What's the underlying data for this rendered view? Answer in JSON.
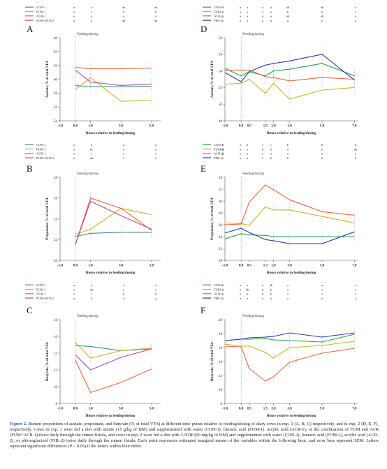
{
  "caption": {
    "label": "Figure 2.",
    "text": "Rumen proportions of acetate, propionate, and butyrate (% of total VFA) at different time points relative to feeding/dosing of dairy cows in exp. 1 (A, B, C) respectively, and in exp. 2 (D, E, F), respectively. Cows in exp. 1 were fed a diet with nitrate (15 g/kg of DM) and supplemented with water (CON-1), fumaric acid (FUM-1), acrylic acid (ACR-1), or the combination of FUM and ACR (FUM+ACR-1) twice daily through the rumen fistula, and cows in exp. 2 were fed a diet with 3-NOP (60 mg/kg of DM) and supplemented with water (CON-2), fumaric acid (FUM-2), acrylic acid (ACR-2), or phloroglucinol (PHL-2) twice daily through the rumen fistula. Each point represents estimated marginal means of the variables within the following hour, and error bars represent SEM. Letters represent significant differences (P < 0.05) if the letters within hour differ."
  },
  "colors": {
    "CON": "#1fa34a",
    "FUM": "#c9b12c",
    "ACR": "#e2683f",
    "FUMACR": "#b24aa3",
    "PHL": "#2a3aa8",
    "CON1": "#3d8f84"
  },
  "chart_data": [
    {
      "panel": "A",
      "type": "line",
      "annotation": "Feeding/dosing",
      "xlabel": "Hours relative to feeding/dosing",
      "ylabel": "Acetate, % of total VFA",
      "x": [
        0,
        1,
        3,
        5
      ],
      "xticks": [
        -1,
        0,
        1,
        3,
        5
      ],
      "xtick_labels": [
        "-1.0",
        "0.0",
        "1.0",
        "3.0",
        "5.0"
      ],
      "xlim": [
        -1,
        5.6
      ],
      "ylim": [
        54,
        66
      ],
      "yticks": [
        54,
        56,
        58,
        60,
        62,
        64,
        66
      ],
      "series": [
        {
          "name": "CON-1",
          "color": "CON1",
          "values": [
            59.1,
            58.9,
            58.9,
            59.0
          ],
          "err": [
            0.9,
            0.9,
            0.9,
            0.9
          ],
          "letters": [
            "a",
            "a",
            "ab",
            "ab"
          ]
        },
        {
          "name": "FUM-1",
          "color": "FUM",
          "values": [
            58.5,
            60.2,
            56.8,
            57.0
          ],
          "err": [
            0.9,
            0.9,
            0.9,
            0.9
          ],
          "letters": [
            "a",
            "a",
            "b",
            "b"
          ]
        },
        {
          "name": "ACR-1",
          "color": "ACR",
          "values": [
            61.7,
            61.5,
            61.5,
            61.6
          ],
          "err": [
            0.9,
            0.9,
            0.9,
            0.9
          ],
          "letters": [
            "a",
            "a",
            "a",
            "a"
          ]
        },
        {
          "name": "FUM+ACR-1",
          "color": "FUMACR",
          "values": [
            61.3,
            59.6,
            59.1,
            59.3
          ],
          "err": [
            0.9,
            0.9,
            0.9,
            0.9
          ],
          "letters": [
            "a",
            "a",
            "ab",
            "ab"
          ]
        }
      ]
    },
    {
      "panel": "B",
      "type": "line",
      "annotation": "Feeding/dosing",
      "xlabel": "Hours relative to feeding/dosing",
      "ylabel": "Propionate, % of total VFA",
      "x": [
        0,
        1,
        3,
        5
      ],
      "xticks": [
        -1,
        0,
        1,
        3,
        5
      ],
      "xtick_labels": [
        "-1.0",
        "0.0",
        "1.0",
        "3.0",
        "5.0"
      ],
      "xlim": [
        -1,
        5.6
      ],
      "ylim": [
        20,
        28
      ],
      "yticks": [
        20,
        22,
        24,
        26,
        28
      ],
      "series": [
        {
          "name": "CON-1",
          "color": "CON1",
          "values": [
            22.3,
            22.6,
            22.7,
            22.7
          ],
          "err": [
            0.6,
            0.6,
            0.6,
            0.6
          ],
          "letters": [
            "a",
            "a",
            "a",
            "a"
          ]
        },
        {
          "name": "FUM-1",
          "color": "FUM",
          "values": [
            22.5,
            23.0,
            25.0,
            24.4
          ],
          "err": [
            0.6,
            0.6,
            0.6,
            0.6
          ],
          "letters": [
            "a",
            "bc",
            "a",
            "a"
          ]
        },
        {
          "name": "ACR-1",
          "color": "ACR",
          "values": [
            21.5,
            26.0,
            25.0,
            22.9
          ],
          "err": [
            0.6,
            0.6,
            0.6,
            0.6
          ],
          "letters": [
            "a",
            "c",
            "a",
            "a"
          ]
        },
        {
          "name": "FUM+ACR-1",
          "color": "FUMACR",
          "values": [
            21.5,
            25.7,
            24.3,
            23.0
          ],
          "err": [
            0.6,
            0.6,
            0.6,
            0.6
          ],
          "letters": [
            "a",
            "ab",
            "a",
            "a"
          ]
        }
      ]
    },
    {
      "panel": "C",
      "type": "line",
      "annotation": "Feeding/dosing",
      "xlabel": "Hours relative to feeding/dosing",
      "ylabel": "Butyrate, % of total VFA",
      "x": [
        0,
        1,
        3,
        5
      ],
      "xticks": [
        -1,
        0,
        1,
        3,
        5
      ],
      "xtick_labels": [
        "-1.0",
        "0.0",
        "1.0",
        "3.0",
        "5.0"
      ],
      "xlim": [
        -1,
        5.6
      ],
      "ylim": [
        8,
        18
      ],
      "yticks": [
        8,
        10,
        12,
        14,
        16,
        18
      ],
      "series": [
        {
          "name": "CON-1",
          "color": "CON1",
          "values": [
            14.9,
            14.8,
            14.3,
            14.5
          ],
          "err": [
            0.6,
            0.6,
            0.6,
            0.6
          ],
          "letters": [
            "a",
            "a",
            "a",
            "a"
          ]
        },
        {
          "name": "FUM-1",
          "color": "FUM",
          "values": [
            15.3,
            13.4,
            14.3,
            14.6
          ],
          "err": [
            0.6,
            0.6,
            0.6,
            0.6
          ],
          "letters": [
            "a",
            "ab",
            "a",
            "a"
          ]
        },
        {
          "name": "ACR-1",
          "color": "ACR",
          "values": [
            13.2,
            9.3,
            10.5,
            12.1
          ],
          "err": [
            0.6,
            0.6,
            0.6,
            0.6
          ],
          "letters": [
            "a",
            "c",
            "b",
            "b"
          ]
        },
        {
          "name": "FUM+ACR-1",
          "color": "FUMACR",
          "values": [
            13.8,
            12.0,
            13.5,
            14.5
          ],
          "err": [
            0.6,
            0.6,
            0.6,
            0.6
          ],
          "letters": [
            "a",
            "b",
            "a",
            "a"
          ]
        }
      ]
    },
    {
      "panel": "D",
      "type": "line",
      "annotation": "Feeding/dosing",
      "xlabel": "Hours relative to feeding/dosing",
      "ylabel": "Acetate, % of total VFA",
      "x": [
        -1,
        0,
        0.5,
        1.5,
        2,
        3,
        5,
        7
      ],
      "xticks": [
        -1,
        0,
        0.5,
        1.5,
        2,
        3,
        5,
        7
      ],
      "xtick_labels": [
        "-1.0",
        "0.0",
        "0.5",
        "1.5",
        "2.0",
        "3.0",
        "5.0",
        "7.0"
      ],
      "xlim": [
        -1,
        7.2
      ],
      "ylim": [
        48,
        58
      ],
      "yticks": [
        48,
        50,
        52,
        54,
        56,
        58
      ],
      "series": [
        {
          "name": "CON-2",
          "color": "CON",
          "values": [
            54.3,
            53.4,
            53.9,
            53.4,
            54.0,
            54.2,
            54.9,
            53.4
          ],
          "err": [
            1.0,
            1.0,
            1.0,
            1.0,
            1.0,
            1.0,
            1.0,
            1.0
          ],
          "letters": [
            "a",
            "a",
            "a",
            "a",
            "a",
            "ab",
            "ab",
            "a"
          ]
        },
        {
          "name": "FUM-2",
          "color": "FUM",
          "values": [
            52.4,
            52.5,
            53.0,
            51.3,
            52.5,
            50.6,
            51.7,
            52.0
          ],
          "err": [
            1.0,
            1.0,
            1.0,
            1.0,
            1.0,
            1.0,
            1.0,
            1.0
          ],
          "letters": [
            "a",
            "a",
            "a",
            "a",
            "a",
            "b",
            "b",
            "a"
          ]
        },
        {
          "name": "ACR-2",
          "color": "ACR",
          "values": [
            54.1,
            54.1,
            54.1,
            53.3,
            53.2,
            52.8,
            53.2,
            53.0
          ],
          "err": [
            1.0,
            1.0,
            1.0,
            1.0,
            1.0,
            1.0,
            1.0,
            1.0
          ],
          "letters": [
            "a",
            "a",
            "a",
            "a",
            "a",
            "ab",
            "ab",
            "a"
          ]
        },
        {
          "name": "PHL-2",
          "color": "PHL",
          "values": [
            53.8,
            52.7,
            53.9,
            54.7,
            54.9,
            55.2,
            56.0,
            52.9
          ],
          "err": [
            1.0,
            1.0,
            1.0,
            1.0,
            1.0,
            1.0,
            1.0,
            1.0
          ],
          "letters": [
            "a",
            "a",
            "a",
            "a",
            "a",
            "a",
            "a",
            "a"
          ]
        }
      ]
    },
    {
      "panel": "E",
      "type": "line",
      "annotation": "Feeding/dosing",
      "xlabel": "Hours relative to feeding/dosing",
      "ylabel": "Propionate, % of total VFA",
      "x": [
        -1,
        0,
        0.5,
        1.5,
        2,
        3,
        5,
        7
      ],
      "xticks": [
        -1,
        0,
        0.5,
        1.5,
        2,
        3,
        5,
        7
      ],
      "xtick_labels": [
        "-1.0",
        "0.0",
        "0.5",
        "1.5",
        "2.0",
        "3.0",
        "5.0",
        "7.0"
      ],
      "xlim": [
        -1,
        7.2
      ],
      "ylim": [
        20,
        34
      ],
      "yticks": [
        20,
        22,
        24,
        26,
        28,
        30,
        32,
        34
      ],
      "series": [
        {
          "name": "CON-2",
          "color": "CON",
          "values": [
            23.6,
            24.5,
            24.3,
            24.2,
            24.0,
            24.0,
            24.0,
            24.0
          ],
          "err": [
            0.9,
            0.9,
            0.9,
            0.9,
            0.9,
            0.9,
            0.9,
            0.9
          ],
          "letters": [
            "b",
            "a",
            "b",
            "c",
            "c",
            "b",
            "b",
            "b"
          ]
        },
        {
          "name": "FUM-2",
          "color": "FUM",
          "values": [
            26.3,
            26.2,
            25.9,
            29.0,
            28.5,
            28.5,
            27.4,
            26.3
          ],
          "err": [
            0.9,
            0.9,
            0.9,
            0.9,
            0.9,
            0.9,
            0.9,
            0.9
          ],
          "letters": [
            "ab",
            "a",
            "a",
            "b",
            "b",
            "a",
            "a",
            "ab"
          ]
        },
        {
          "name": "ACR-2",
          "color": "ACR",
          "values": [
            26.0,
            26.1,
            29.8,
            32.7,
            31.9,
            30.2,
            28.2,
            27.6
          ],
          "err": [
            0.9,
            0.9,
            0.9,
            0.9,
            0.9,
            0.9,
            0.9,
            0.9
          ],
          "letters": [
            "ab",
            "a",
            "a",
            "a",
            "a",
            "a",
            "a",
            "a"
          ]
        },
        {
          "name": "PHL-2",
          "color": "PHL",
          "values": [
            24.6,
            25.4,
            24.7,
            23.5,
            23.3,
            22.8,
            22.8,
            24.8
          ],
          "err": [
            0.9,
            0.9,
            0.9,
            0.9,
            0.9,
            0.9,
            0.9,
            0.9
          ],
          "letters": [
            "a",
            "a",
            "b",
            "c",
            "b",
            "b",
            "b",
            "b"
          ]
        }
      ]
    },
    {
      "panel": "F",
      "type": "line",
      "annotation": "Feeding/dosing",
      "xlabel": "Hours relative to feeding/dosing",
      "ylabel": "Butyrate, % of total VFA",
      "x": [
        -1,
        0,
        0.5,
        1.5,
        2,
        3,
        5,
        7
      ],
      "xticks": [
        -1,
        0,
        0.5,
        1.5,
        2,
        3,
        5,
        7
      ],
      "xtick_labels": [
        "-1.0",
        "0.0",
        "0.5",
        "1.5",
        "2.0",
        "3.0",
        "5.0",
        "7.0"
      ],
      "xlim": [
        -1,
        7.2
      ],
      "ylim": [
        8,
        20
      ],
      "yticks": [
        8,
        10,
        12,
        14,
        16,
        18,
        20
      ],
      "series": [
        {
          "name": "CON-2",
          "color": "CON",
          "values": [
            17.0,
            17.2,
            17.2,
            17.3,
            17.1,
            17.0,
            16.8,
            17.9
          ],
          "err": [
            0.8,
            0.8,
            0.8,
            0.8,
            0.8,
            0.8,
            0.8,
            0.8
          ],
          "letters": [
            "a",
            "a",
            "a",
            "a",
            "ab",
            "a",
            "a",
            "a"
          ]
        },
        {
          "name": "FUM-2",
          "color": "FUM",
          "values": [
            16.5,
            16.2,
            16.2,
            15.3,
            14.5,
            16.0,
            16.3,
            16.9
          ],
          "err": [
            0.8,
            0.8,
            0.8,
            0.8,
            0.8,
            0.8,
            0.8,
            0.8
          ],
          "letters": [
            "a",
            "a",
            "ab",
            "b",
            "b",
            "a",
            "a",
            "a"
          ]
        },
        {
          "name": "ACR-2",
          "color": "ACR",
          "values": [
            16.2,
            16.1,
            13.0,
            11.2,
            11.8,
            13.9,
            15.2,
            15.9
          ],
          "err": [
            0.8,
            0.8,
            0.8,
            0.8,
            0.8,
            0.8,
            0.8,
            0.8
          ],
          "letters": [
            "a",
            "a",
            "b",
            "b",
            "b",
            "a",
            "a",
            "a"
          ]
        },
        {
          "name": "PHL-2",
          "color": "PHL",
          "values": [
            17.0,
            17.2,
            17.4,
            17.5,
            17.6,
            18.1,
            17.5,
            18.1
          ],
          "err": [
            0.8,
            0.8,
            0.8,
            0.8,
            0.8,
            0.8,
            0.8,
            0.8
          ],
          "letters": [
            "a",
            "a",
            "a",
            "a",
            "a",
            "a",
            "a",
            "a"
          ]
        }
      ]
    }
  ]
}
